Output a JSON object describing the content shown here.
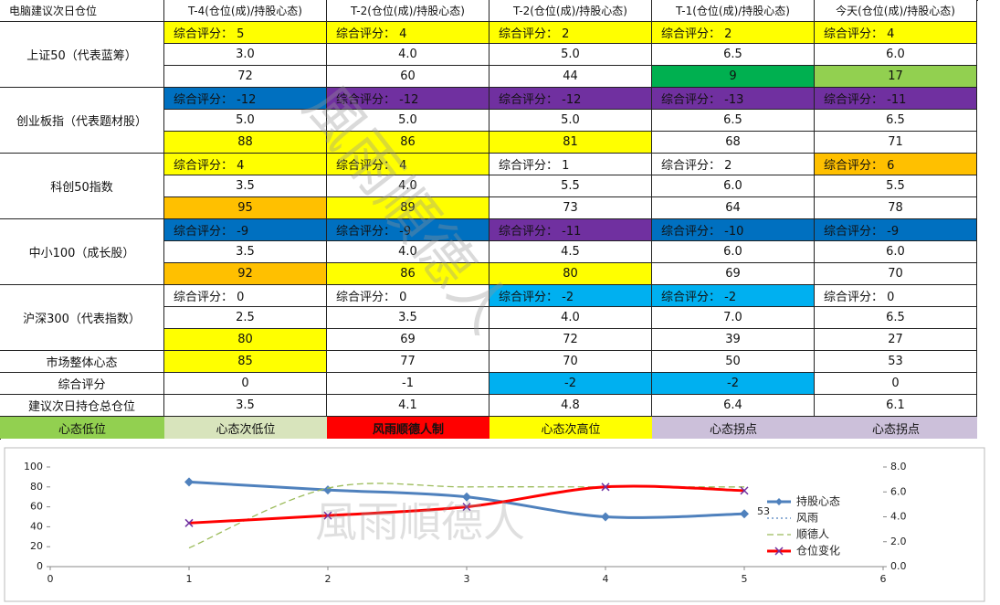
{
  "watermark": "風雨順德人",
  "table": {
    "header": [
      "电脑建议次日仓位",
      "T-4(仓位(成)/持股心态)",
      "T-2(仓位(成)/持股心态)",
      "T-2(仓位(成)/持股心态)",
      "T-1(仓位(成)/持股心态)",
      "今天(仓位(成)/持股心态)"
    ],
    "groups": [
      {
        "label": "上证50（代表蓝筹）",
        "rows": [
          {
            "cells": [
              "综合评分： 5",
              "综合评分： 4",
              "综合评分： 2",
              "综合评分： 2",
              "综合评分： 4"
            ],
            "fills": [
              "#ffff00",
              "#ffff00",
              "#ffff00",
              "#ffff00",
              "#ffff00"
            ]
          },
          {
            "cells": [
              "3.0",
              "4.0",
              "5.0",
              "6.5",
              "6.0"
            ],
            "fills": [
              "#ffffff",
              "#ffffff",
              "#ffffff",
              "#ffffff",
              "#ffffff"
            ]
          },
          {
            "cells": [
              "72",
              "60",
              "44",
              "9",
              "17"
            ],
            "fills": [
              "#ffffff",
              "#ffffff",
              "#ffffff",
              "#00b050",
              "#92d050"
            ]
          }
        ]
      },
      {
        "label": "创业板指（代表题材股）",
        "rows": [
          {
            "cells": [
              "综合评分： -12",
              "综合评分： -12",
              "综合评分： -12",
              "综合评分： -13",
              "综合评分： -11"
            ],
            "fills": [
              "#0070c0",
              "#7030a0",
              "#7030a0",
              "#7030a0",
              "#7030a0"
            ]
          },
          {
            "cells": [
              "5.0",
              "5.0",
              "5.0",
              "6.5",
              "6.5"
            ],
            "fills": [
              "#ffffff",
              "#ffffff",
              "#ffffff",
              "#ffffff",
              "#ffffff"
            ]
          },
          {
            "cells": [
              "88",
              "86",
              "81",
              "68",
              "71"
            ],
            "fills": [
              "#ffff00",
              "#ffff00",
              "#ffff00",
              "#ffffff",
              "#ffffff"
            ]
          }
        ]
      },
      {
        "label": "科创50指数",
        "rows": [
          {
            "cells": [
              "综合评分： 4",
              "综合评分： 4",
              "综合评分： 1",
              "综合评分： 2",
              "综合评分： 6"
            ],
            "fills": [
              "#ffff00",
              "#ffff00",
              "#ffffff",
              "#ffffff",
              "#ffc000"
            ]
          },
          {
            "cells": [
              "3.5",
              "4.0",
              "5.5",
              "6.0",
              "5.5"
            ],
            "fills": [
              "#ffffff",
              "#ffffff",
              "#ffffff",
              "#ffffff",
              "#ffffff"
            ]
          },
          {
            "cells": [
              "95",
              "89",
              "73",
              "64",
              "78"
            ],
            "fills": [
              "#ffc000",
              "#ffff00",
              "#ffffff",
              "#ffffff",
              "#ffffff"
            ]
          }
        ]
      },
      {
        "label": "中小100（成长股）",
        "rows": [
          {
            "cells": [
              "综合评分： -9",
              "综合评分： -9",
              "综合评分： -11",
              "综合评分： -10",
              "综合评分： -9"
            ],
            "fills": [
              "#0070c0",
              "#0070c0",
              "#7030a0",
              "#0070c0",
              "#0070c0"
            ]
          },
          {
            "cells": [
              "3.5",
              "4.0",
              "4.5",
              "6.0",
              "6.0"
            ],
            "fills": [
              "#ffffff",
              "#ffffff",
              "#ffffff",
              "#ffffff",
              "#ffffff"
            ]
          },
          {
            "cells": [
              "92",
              "86",
              "80",
              "69",
              "70"
            ],
            "fills": [
              "#ffc000",
              "#ffff00",
              "#ffff00",
              "#ffffff",
              "#ffffff"
            ]
          }
        ]
      },
      {
        "label": "沪深300（代表指数）",
        "rows": [
          {
            "cells": [
              "综合评分： 0",
              "综合评分： 0",
              "综合评分： -2",
              "综合评分： -2",
              "综合评分： 0"
            ],
            "fills": [
              "#ffffff",
              "#ffffff",
              "#00b0f0",
              "#00b0f0",
              "#ffffff"
            ]
          },
          {
            "cells": [
              "2.5",
              "3.5",
              "4.0",
              "7.0",
              "6.5"
            ],
            "fills": [
              "#ffffff",
              "#ffffff",
              "#ffffff",
              "#ffffff",
              "#ffffff"
            ]
          },
          {
            "cells": [
              "80",
              "69",
              "72",
              "39",
              "27"
            ],
            "fills": [
              "#ffff00",
              "#ffffff",
              "#ffffff",
              "#ffffff",
              "#ffffff"
            ]
          }
        ]
      }
    ],
    "summary": [
      {
        "label": "市场整体心态",
        "cells": [
          "85",
          "77",
          "70",
          "50",
          "53"
        ],
        "fills": [
          "#ffff00",
          "#ffffff",
          "#ffffff",
          "#ffffff",
          "#ffffff"
        ]
      },
      {
        "label": "综合评分",
        "cells": [
          "0",
          "-1",
          "-2",
          "-2",
          "0"
        ],
        "fills": [
          "#ffffff",
          "#ffffff",
          "#00b0f0",
          "#00b0f0",
          "#ffffff"
        ]
      },
      {
        "label": "建议次日持仓总仓位",
        "cells": [
          "3.5",
          "4.1",
          "4.8",
          "6.4",
          "6.1"
        ],
        "fills": [
          "#ffffff",
          "#ffffff",
          "#ffffff",
          "#ffffff",
          "#ffffff"
        ]
      }
    ],
    "legend": [
      {
        "text": "心态低位",
        "fill": "#92d050",
        "bold": false
      },
      {
        "text": "心态次低位",
        "fill": "#d8e4bc",
        "bold": false
      },
      {
        "text": "风雨顺德人制",
        "fill": "#ff0000",
        "bold": true
      },
      {
        "text": "心态次高位",
        "fill": "#ffff00",
        "bold": false
      },
      {
        "text": "心态拐点",
        "fill": "#ccc0da",
        "bold": false
      },
      {
        "text": "心态拐点",
        "fill": "#ccc0da",
        "bold": false
      }
    ]
  },
  "chart_data": {
    "type": "line",
    "x": [
      1,
      2,
      3,
      4,
      5
    ],
    "xlim": [
      0,
      6
    ],
    "xticks": [
      0,
      1,
      2,
      3,
      4,
      5,
      6
    ],
    "ylim": [
      0,
      100
    ],
    "yticks": [
      0,
      20,
      40,
      60,
      80,
      100
    ],
    "y2lim": [
      0,
      8
    ],
    "y2ticks": [
      {
        "value": 0,
        "label": "0.0"
      },
      {
        "value": 2,
        "label": "2.0"
      },
      {
        "value": 4,
        "label": "4.0"
      },
      {
        "value": 6,
        "label": "6.0"
      },
      {
        "value": 8,
        "label": "8.0"
      }
    ],
    "series": [
      {
        "name": "持股心态",
        "color": "#4f81bd",
        "style": "solid",
        "marker": "diamond",
        "values": [
          85,
          77,
          70,
          50,
          53
        ],
        "value_labels": [
          null,
          null,
          null,
          null,
          "53"
        ]
      },
      {
        "name": "风雨",
        "color": "#4f81bd",
        "style": "dotted",
        "marker": "none",
        "values": [
          null,
          null,
          null,
          null,
          null
        ]
      },
      {
        "name": "顺德人",
        "color": "#9bbb59",
        "style": "dashed",
        "marker": "none",
        "axis": "y2",
        "values": [
          1.5,
          6.3,
          6.4,
          6.4,
          6.4
        ]
      },
      {
        "name": "仓位变化",
        "color": "#ff0000",
        "style": "solid",
        "marker": "x",
        "axis": "y2",
        "values": [
          3.5,
          4.1,
          4.8,
          6.4,
          6.1
        ]
      }
    ]
  }
}
